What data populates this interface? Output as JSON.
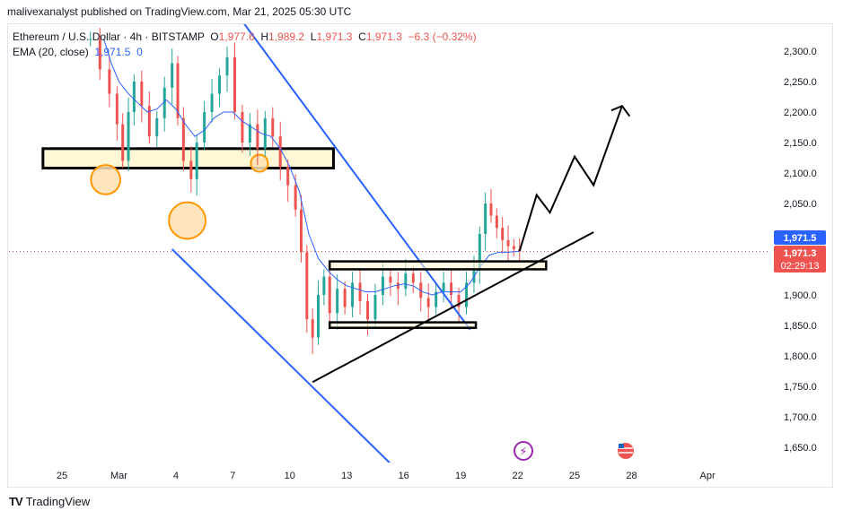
{
  "header": {
    "publisher": "malivexanalyst published on TradingView.com, Mar 21, 2025 05:30 UTC"
  },
  "legend": {
    "symbol": "Ethereum / U.S. Dollar · 4h · BITSTAMP",
    "o_key": "O",
    "o_val": "1,977.6",
    "h_key": "H",
    "h_val": "1,989.2",
    "l_key": "L",
    "l_val": "1,971.3",
    "c_key": "C",
    "c_val": "1,971.3",
    "chg": "−6.3 (−0.32%)",
    "ema_label": "EMA (20, close)",
    "ema_val": "1,971.5",
    "ema_tail": "0"
  },
  "price_badges": {
    "ema": "1,971.5",
    "price": "1,971.3",
    "countdown": "02:29:13"
  },
  "brand": {
    "name": "TradingView",
    "logo": "TV"
  },
  "colors": {
    "up": "#26a69a",
    "down": "#ef5350",
    "ema": "#2962ff",
    "channel": "#2962ff",
    "zone_fill": "#fff7d6",
    "circle_fill": "#ffe0b2",
    "circle_stroke": "#ff9800"
  },
  "chart_data": {
    "type": "candlestick",
    "title": "Ethereum / U.S. Dollar · 4h · BITSTAMP",
    "x_ticks": [
      {
        "label": "25",
        "day": 0
      },
      {
        "label": "Mar",
        "day": 3
      },
      {
        "label": "4",
        "day": 6
      },
      {
        "label": "7",
        "day": 9
      },
      {
        "label": "10",
        "day": 12
      },
      {
        "label": "13",
        "day": 15
      },
      {
        "label": "16",
        "day": 18
      },
      {
        "label": "19",
        "day": 21
      },
      {
        "label": "22",
        "day": 24
      },
      {
        "label": "25",
        "day": 27
      },
      {
        "label": "28",
        "day": 30
      },
      {
        "label": "Apr",
        "day": 34
      }
    ],
    "y_ticks": [
      "2,300.0",
      "2,250.0",
      "2,200.0",
      "2,150.0",
      "2,100.0",
      "2,050.0",
      "2,000.0",
      "1,950.0",
      "1,900.0",
      "1,850.0",
      "1,800.0",
      "1,750.0",
      "1,700.0",
      "1,650.0"
    ],
    "y_range": [
      1630,
      2330
    ],
    "last_price": 1971.3,
    "ema_last": 1971.5,
    "candles_close_path": [
      [
        1.5,
        2320
      ],
      [
        2.0,
        2270
      ],
      [
        2.5,
        2230
      ],
      [
        2.9,
        2180
      ],
      [
        3.2,
        2120
      ],
      [
        3.5,
        2200
      ],
      [
        3.8,
        2250
      ],
      [
        4.2,
        2210
      ],
      [
        4.6,
        2160
      ],
      [
        5.0,
        2190
      ],
      [
        5.4,
        2240
      ],
      [
        5.8,
        2280
      ],
      [
        6.1,
        2190
      ],
      [
        6.4,
        2120
      ],
      [
        6.8,
        2090
      ],
      [
        7.1,
        2150
      ],
      [
        7.5,
        2200
      ],
      [
        7.9,
        2230
      ],
      [
        8.3,
        2260
      ],
      [
        8.7,
        2290
      ],
      [
        9.1,
        2200
      ],
      [
        9.5,
        2150
      ],
      [
        9.9,
        2180
      ],
      [
        10.3,
        2140
      ],
      [
        10.7,
        2190
      ],
      [
        11.1,
        2160
      ],
      [
        11.5,
        2110
      ],
      [
        11.9,
        2080
      ],
      [
        12.3,
        2040
      ],
      [
        12.6,
        1970
      ],
      [
        12.9,
        1860
      ],
      [
        13.2,
        1830
      ],
      [
        13.5,
        1900
      ],
      [
        13.8,
        1930
      ],
      [
        14.1,
        1870
      ],
      [
        14.5,
        1910
      ],
      [
        14.9,
        1880
      ],
      [
        15.3,
        1920
      ],
      [
        15.7,
        1890
      ],
      [
        16.1,
        1860
      ],
      [
        16.5,
        1900
      ],
      [
        16.9,
        1930
      ],
      [
        17.3,
        1920
      ],
      [
        17.7,
        1910
      ],
      [
        18.1,
        1935
      ],
      [
        18.5,
        1920
      ],
      [
        18.9,
        1895
      ],
      [
        19.3,
        1880
      ],
      [
        19.7,
        1905
      ],
      [
        20.1,
        1920
      ],
      [
        20.5,
        1900
      ],
      [
        20.9,
        1880
      ],
      [
        21.3,
        1920
      ],
      [
        21.7,
        1940
      ],
      [
        22.0,
        2000
      ],
      [
        22.3,
        2050
      ],
      [
        22.6,
        2030
      ],
      [
        22.9,
        2010
      ],
      [
        23.2,
        1990
      ],
      [
        23.5,
        1980
      ],
      [
        23.8,
        1975
      ],
      [
        24.1,
        1971.3
      ]
    ],
    "ema_path": [
      [
        2.2,
        2320
      ],
      [
        2.6,
        2280
      ],
      [
        3.0,
        2250
      ],
      [
        3.5,
        2230
      ],
      [
        4.0,
        2215
      ],
      [
        4.5,
        2200
      ],
      [
        5.0,
        2205
      ],
      [
        5.5,
        2220
      ],
      [
        6.0,
        2205
      ],
      [
        6.5,
        2180
      ],
      [
        7.0,
        2160
      ],
      [
        7.5,
        2170
      ],
      [
        8.0,
        2190
      ],
      [
        8.5,
        2200
      ],
      [
        9.0,
        2200
      ],
      [
        9.5,
        2185
      ],
      [
        10.0,
        2175
      ],
      [
        10.5,
        2165
      ],
      [
        11.0,
        2160
      ],
      [
        11.5,
        2140
      ],
      [
        12.0,
        2110
      ],
      [
        12.5,
        2070
      ],
      [
        13.0,
        2000
      ],
      [
        13.5,
        1960
      ],
      [
        14.0,
        1940
      ],
      [
        14.5,
        1925
      ],
      [
        15.0,
        1915
      ],
      [
        15.5,
        1910
      ],
      [
        16.0,
        1905
      ],
      [
        16.5,
        1905
      ],
      [
        17.0,
        1910
      ],
      [
        17.5,
        1915
      ],
      [
        18.0,
        1918
      ],
      [
        18.5,
        1915
      ],
      [
        19.0,
        1905
      ],
      [
        19.5,
        1900
      ],
      [
        20.0,
        1905
      ],
      [
        20.5,
        1905
      ],
      [
        21.0,
        1905
      ],
      [
        21.5,
        1920
      ],
      [
        22.0,
        1945
      ],
      [
        22.5,
        1965
      ],
      [
        23.0,
        1970
      ],
      [
        23.5,
        1970
      ],
      [
        24.1,
        1971.5
      ]
    ],
    "drawings": {
      "resistance_zone": {
        "y_top": 2140,
        "y_bottom": 2108,
        "x_start": -1,
        "x_end": 14.3
      },
      "zone_upper_small": {
        "y_top": 1955,
        "y_bottom": 1942,
        "x_start": 14.1,
        "x_end": 25.5
      },
      "zone_lower_small": {
        "y_top": 1855,
        "y_bottom": 1846,
        "x_start": 14.1,
        "x_end": 21.8
      },
      "circles": [
        {
          "day": 2.3,
          "price": 2089,
          "r_price": 24
        },
        {
          "day": 6.6,
          "price": 2022,
          "r_price": 30
        },
        {
          "day": 10.4,
          "price": 2116,
          "r_price": 14
        }
      ],
      "channel_upper": [
        [
          9.0,
          2370
        ],
        [
          21.5,
          1843
        ]
      ],
      "channel_lower": [
        [
          5.8,
          1975
        ],
        [
          17.8,
          1608
        ]
      ],
      "support_trend": [
        [
          13.2,
          1757
        ],
        [
          28.0,
          2003
        ]
      ],
      "projection": [
        [
          24.1,
          1972
        ],
        [
          25.0,
          2064
        ],
        [
          25.7,
          2035
        ],
        [
          27.0,
          2127
        ],
        [
          28.0,
          2080
        ],
        [
          29.5,
          2210
        ],
        [
          29.9,
          2193
        ]
      ]
    }
  }
}
